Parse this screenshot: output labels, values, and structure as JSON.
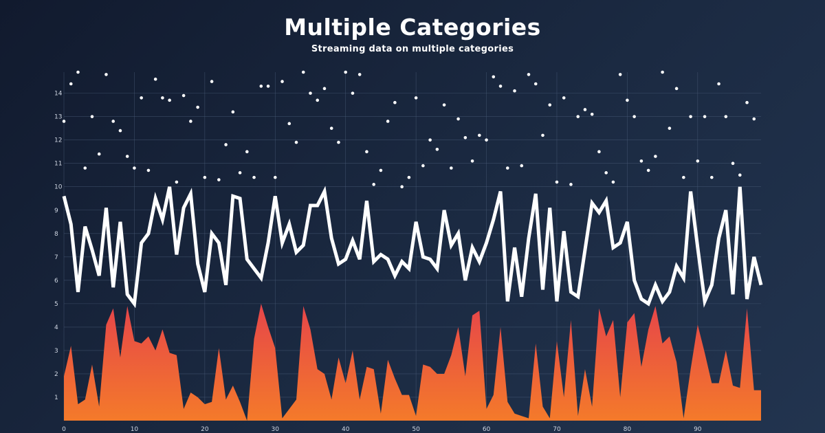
{
  "header": {
    "title": "Multiple Categories",
    "subtitle": "Streaming data on multiple categories"
  },
  "colors": {
    "line": "#ffffff",
    "scatter": "#ffffff",
    "area_top": "#e6454a",
    "area_bottom": "#f47a2a",
    "grid": "#4a5c78",
    "tick_text": "#cfd6e2"
  },
  "chart_data": {
    "type": "line",
    "title": "Multiple Categories",
    "subtitle": "Streaming data on multiple categories",
    "xlabel": "",
    "ylabel": "",
    "xlim": [
      0,
      99
    ],
    "ylim": [
      0,
      14.9
    ],
    "xticks": [
      0,
      10,
      20,
      30,
      40,
      50,
      60,
      70,
      80,
      90
    ],
    "yticks": [
      1,
      2,
      3,
      4,
      5,
      6,
      7,
      8,
      9,
      10,
      11,
      12,
      13,
      14
    ],
    "grid": true,
    "legend": "none",
    "series": [
      {
        "type": "scatter",
        "values": [
          12.8,
          14.4,
          14.9,
          10.8,
          13.0,
          11.4,
          14.8,
          12.8,
          12.4,
          11.3,
          10.8,
          13.8,
          10.7,
          14.6,
          13.8,
          13.7,
          10.2,
          13.9,
          12.8,
          13.4,
          10.4,
          14.5,
          10.3,
          11.8,
          13.2,
          10.6,
          11.5,
          10.4,
          14.3,
          14.3,
          10.4,
          14.5,
          12.7,
          11.9,
          14.9,
          14.0,
          13.7,
          14.2,
          12.5,
          11.9,
          14.9,
          14.0,
          14.8,
          11.5,
          10.1,
          10.7,
          12.8,
          13.6,
          10.0,
          10.4,
          13.8,
          10.9,
          12.0,
          11.6,
          13.5,
          10.8,
          12.9,
          12.1,
          11.1,
          12.2,
          12.0,
          14.7,
          14.3,
          10.8,
          14.1,
          10.9,
          14.8,
          14.4,
          12.2,
          13.5,
          10.2,
          13.8,
          10.1,
          13.0,
          13.3,
          13.1,
          11.5,
          10.6,
          10.2,
          14.8,
          13.7,
          13.0,
          11.1,
          10.7,
          11.3,
          14.9,
          12.5,
          14.2,
          10.4,
          13.0,
          11.1,
          13.0,
          10.4,
          14.4,
          13.0,
          11.0,
          10.5,
          13.6,
          12.9
        ]
      },
      {
        "type": "line",
        "values": [
          9.6,
          8.4,
          5.5,
          8.3,
          7.3,
          6.2,
          9.1,
          5.7,
          8.5,
          5.4,
          5.0,
          7.6,
          8.0,
          9.5,
          8.6,
          10.0,
          7.1,
          9.1,
          9.7,
          6.7,
          5.5,
          8.0,
          7.6,
          5.8,
          9.6,
          9.5,
          6.9,
          6.5,
          6.1,
          7.6,
          9.6,
          7.6,
          8.4,
          7.2,
          7.5,
          9.2,
          9.2,
          9.8,
          7.8,
          6.7,
          6.9,
          7.7,
          6.9,
          9.4,
          6.8,
          7.1,
          6.9,
          6.2,
          6.8,
          6.5,
          8.5,
          7.0,
          6.9,
          6.5,
          9.0,
          7.5,
          8.0,
          6.0,
          7.4,
          6.8,
          7.6,
          8.6,
          9.8,
          5.1,
          7.4,
          5.3,
          7.8,
          9.7,
          5.6,
          9.1,
          5.1,
          8.1,
          5.5,
          5.3,
          7.3,
          9.3,
          8.9,
          9.4,
          7.4,
          7.6,
          8.5,
          6.0,
          5.2,
          5.0,
          5.8,
          5.1,
          5.5,
          6.6,
          6.1,
          9.8,
          7.4,
          5.1,
          5.8,
          7.8,
          9.0,
          5.4,
          10.0,
          5.2,
          7.0,
          5.8
        ]
      },
      {
        "type": "area",
        "values": [
          1.9,
          3.2,
          0.7,
          0.9,
          2.4,
          0.6,
          4.1,
          4.8,
          2.7,
          4.9,
          3.4,
          3.3,
          3.6,
          3.0,
          3.9,
          2.9,
          2.8,
          0.5,
          1.2,
          1.0,
          0.7,
          0.8,
          3.1,
          0.9,
          1.5,
          0.8,
          0.0,
          3.5,
          5.0,
          4.0,
          3.1,
          0.1,
          0.5,
          0.9,
          4.9,
          3.9,
          2.2,
          2.0,
          0.9,
          2.7,
          1.6,
          3.0,
          0.9,
          2.3,
          2.2,
          0.3,
          2.6,
          1.8,
          1.1,
          1.1,
          0.2,
          2.4,
          2.3,
          2.0,
          2.0,
          2.8,
          4.0,
          1.9,
          4.5,
          4.7,
          0.5,
          1.1,
          4.0,
          0.8,
          0.3,
          0.2,
          0.1,
          3.3,
          0.6,
          0.1,
          3.4,
          1.0,
          4.3,
          0.2,
          2.2,
          0.6,
          4.8,
          3.6,
          4.3,
          1.0,
          4.2,
          4.6,
          2.3,
          3.9,
          4.9,
          3.3,
          3.6,
          2.5,
          0.1,
          2.2,
          4.1,
          2.9,
          1.6,
          1.6,
          3.0,
          1.5,
          1.4,
          4.8,
          1.3,
          1.3
        ]
      }
    ]
  }
}
